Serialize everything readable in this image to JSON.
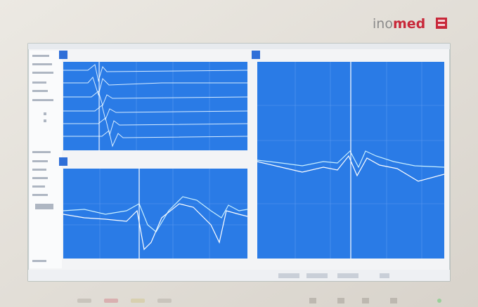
{
  "brand": {
    "prefix": "ino",
    "suffix": "med"
  }
}
